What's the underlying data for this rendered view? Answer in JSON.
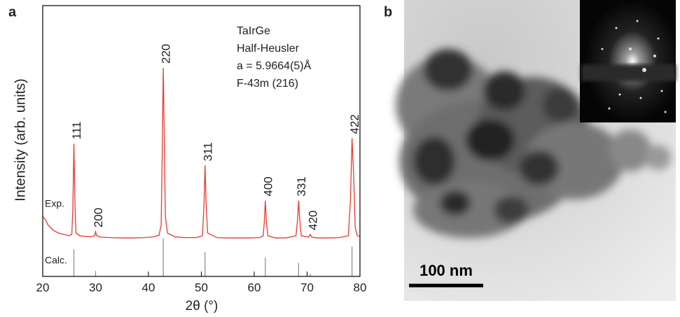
{
  "chart_data": {
    "type": "line",
    "panel_labels": [
      "a",
      "b"
    ],
    "ylabel": "Intensity (arb. units)",
    "xlabel": "2θ (°)",
    "info": [
      "TaIrGe",
      "Half-Heusler",
      "a = 5.9664(5)Å",
      "F-43m (216)"
    ],
    "xlim": [
      20,
      80
    ],
    "xticks": [
      20,
      30,
      40,
      50,
      60,
      70,
      80
    ],
    "ylim": [
      0,
      100
    ],
    "series": [
      {
        "name": "Exp.",
        "color": "#e8392f",
        "x": [
          20,
          20.5,
          21,
          22,
          23,
          24,
          25,
          25.5,
          25.7,
          25.9,
          26.1,
          26.3,
          27,
          28,
          29,
          29.8,
          30,
          30.2,
          31,
          33,
          35,
          37,
          39,
          41,
          42,
          42.4,
          42.6,
          42.8,
          43.0,
          43.2,
          43.6,
          45,
          47,
          49,
          50.2,
          50.5,
          50.7,
          50.9,
          51.2,
          53,
          55,
          57,
          59,
          61,
          61.7,
          61.9,
          62.1,
          62.3,
          62.6,
          64,
          66,
          67.9,
          68.2,
          68.4,
          68.6,
          68.9,
          70.3,
          70.6,
          70.9,
          72,
          74,
          76,
          77.8,
          78.2,
          78.5,
          78.8,
          79.1,
          79.5,
          80
        ],
        "values": [
          22,
          21,
          19,
          17,
          16,
          15.5,
          15,
          15.5,
          25,
          49,
          26,
          16,
          15,
          14.8,
          14.6,
          15,
          16.5,
          15,
          14.5,
          14.3,
          14.2,
          14.2,
          14.3,
          14.6,
          15.2,
          19,
          45,
          77,
          50,
          22,
          16,
          14.6,
          14.3,
          14.3,
          15,
          26,
          41,
          27,
          16,
          14.3,
          14.2,
          14.2,
          14.2,
          14.3,
          15,
          20,
          28,
          20,
          15,
          14.2,
          14.2,
          15,
          21,
          28,
          21,
          15,
          14.5,
          15.5,
          14.5,
          14.2,
          14.2,
          14.3,
          15,
          28,
          51,
          38,
          18,
          15,
          14.8
        ]
      }
    ],
    "calc": {
      "name": "Calc.",
      "color": "#8a8a8a",
      "x": [
        25.9,
        30.0,
        42.8,
        50.7,
        62.1,
        68.4,
        70.6,
        78.5
      ],
      "values": [
        10,
        2,
        14,
        9,
        7,
        5,
        1,
        11
      ]
    },
    "peak_labels": [
      {
        "text": "111",
        "x": 25.9
      },
      {
        "text": "200",
        "x": 30.0
      },
      {
        "text": "220",
        "x": 42.8
      },
      {
        "text": "311",
        "x": 50.7
      },
      {
        "text": "400",
        "x": 62.1
      },
      {
        "text": "331",
        "x": 68.4
      },
      {
        "text": "420",
        "x": 70.6
      },
      {
        "text": "422",
        "x": 78.5
      }
    ],
    "scale_bar": "100 nm"
  }
}
